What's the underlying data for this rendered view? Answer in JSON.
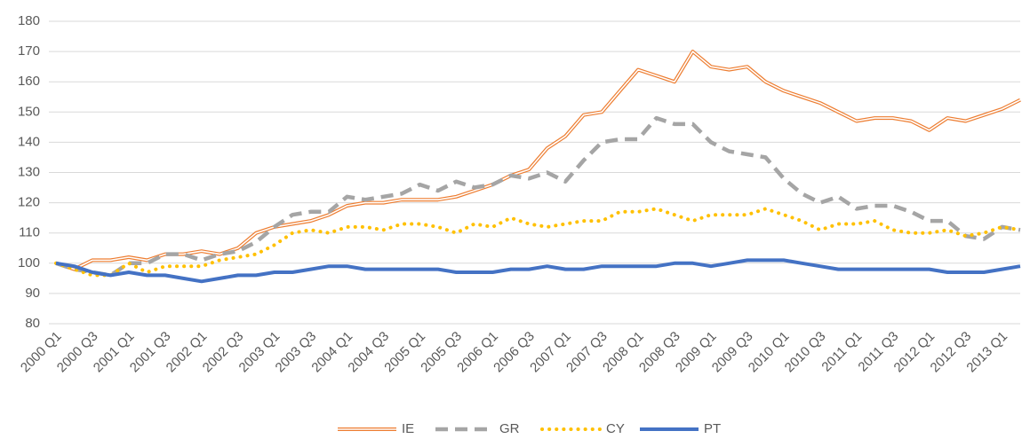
{
  "chart_data": {
    "type": "line",
    "categories": [
      "2000 Q1",
      null,
      "2000 Q3",
      null,
      "2001 Q1",
      null,
      "2001 Q3",
      null,
      "2002 Q1",
      null,
      "2002 Q3",
      null,
      "2003 Q1",
      null,
      "2003 Q3",
      null,
      "2004 Q1",
      null,
      "2004 Q3",
      null,
      "2005 Q1",
      null,
      "2005 Q3",
      null,
      "2006 Q1",
      null,
      "2006 Q3",
      null,
      "2007 Q1",
      null,
      "2007 Q3",
      null,
      "2008 Q1",
      null,
      "2008 Q3",
      null,
      "2009 Q1",
      null,
      "2009 Q3",
      null,
      "2010 Q1",
      null,
      "2010 Q3",
      null,
      "2011 Q1",
      null,
      "2011 Q3",
      null,
      "2012 Q1",
      null,
      "2012 Q3",
      null,
      "2013 Q1",
      null
    ],
    "series": [
      {
        "name": "IE",
        "color": "#ed7d31",
        "style": "double",
        "values": [
          100,
          98,
          101,
          101,
          102,
          101,
          103,
          103,
          104,
          103,
          105,
          110,
          112,
          113,
          114,
          116,
          119,
          120,
          120,
          121,
          121,
          121,
          122,
          124,
          126,
          129,
          131,
          138,
          142,
          149,
          150,
          157,
          164,
          162,
          160,
          170,
          165,
          164,
          165,
          160,
          157,
          155,
          153,
          150,
          147,
          148,
          148,
          147,
          144,
          148,
          147,
          149,
          151,
          154
        ]
      },
      {
        "name": "GR",
        "color": "#a5a5a5",
        "style": "dashed",
        "values": [
          100,
          98,
          97,
          96,
          100,
          100,
          103,
          103,
          101,
          103,
          104,
          107,
          112,
          116,
          117,
          117,
          122,
          121,
          122,
          123,
          126,
          124,
          127,
          125,
          126,
          129,
          128,
          130,
          127,
          134,
          140,
          141,
          141,
          148,
          146,
          146,
          140,
          137,
          136,
          135,
          128,
          123,
          120,
          122,
          118,
          119,
          119,
          117,
          114,
          114,
          109,
          108,
          112,
          111
        ]
      },
      {
        "name": "CY",
        "color": "#ffc000",
        "style": "dotted",
        "values": [
          100,
          98,
          96,
          96,
          100,
          97,
          99,
          99,
          99,
          101,
          102,
          103,
          106,
          110,
          111,
          110,
          112,
          112,
          111,
          113,
          113,
          112,
          110,
          113,
          112,
          115,
          113,
          112,
          113,
          114,
          114,
          117,
          117,
          118,
          116,
          114,
          116,
          116,
          116,
          118,
          116,
          114,
          111,
          113,
          113,
          114,
          111,
          110,
          110,
          111,
          109,
          110,
          112,
          111
        ]
      },
      {
        "name": "PT",
        "color": "#4472c4",
        "style": "solid",
        "values": [
          100,
          99,
          97,
          96,
          97,
          96,
          96,
          95,
          94,
          95,
          96,
          96,
          97,
          97,
          98,
          99,
          99,
          98,
          98,
          98,
          98,
          98,
          97,
          97,
          97,
          98,
          98,
          99,
          98,
          98,
          99,
          99,
          99,
          99,
          100,
          100,
          99,
          100,
          101,
          101,
          101,
          100,
          99,
          98,
          98,
          98,
          98,
          98,
          98,
          97,
          97,
          97,
          98,
          99
        ]
      }
    ],
    "ylim": [
      80,
      180
    ],
    "yticks": [
      80,
      90,
      100,
      110,
      120,
      130,
      140,
      150,
      160,
      170,
      180
    ],
    "grid": true,
    "legend": "bottom"
  }
}
